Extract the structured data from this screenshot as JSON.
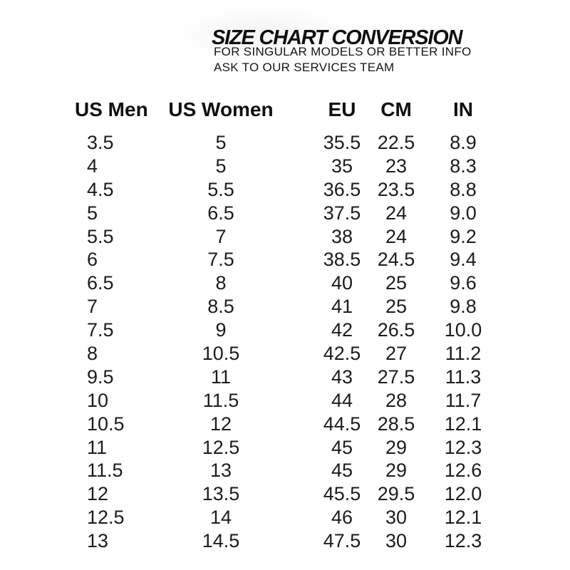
{
  "header": {
    "title": "SIZE CHART CONVERSION",
    "subtitle_line1": "FOR SINGULAR MODELS OR BETTER INFO",
    "subtitle_line2": "ASK TO OUR SERVICES TEAM"
  },
  "colors": {
    "background": "#ffffff",
    "text": "#1a1a1a",
    "title_text": "#0f0f0f"
  },
  "chart_data": {
    "type": "table",
    "title": "SIZE CHART CONVERSION",
    "columns": [
      "US Men",
      "US Women",
      "EU",
      "CM",
      "IN"
    ],
    "rows": [
      [
        "3.5",
        "5",
        "35.5",
        "22.5",
        "8.9"
      ],
      [
        "4",
        "5",
        "35",
        "23",
        "8.3"
      ],
      [
        "4.5",
        "5.5",
        "36.5",
        "23.5",
        "8.8"
      ],
      [
        "5",
        "6.5",
        "37.5",
        "24",
        "9.0"
      ],
      [
        "5.5",
        "7",
        "38",
        "24",
        "9.2"
      ],
      [
        "6",
        "7.5",
        "38.5",
        "24.5",
        "9.4"
      ],
      [
        "6.5",
        "8",
        "40",
        "25",
        "9.6"
      ],
      [
        "7",
        "8.5",
        "41",
        "25",
        "9.8"
      ],
      [
        "7.5",
        "9",
        "42",
        "26.5",
        "10.0"
      ],
      [
        "8",
        "10.5",
        "42.5",
        "27",
        "11.2"
      ],
      [
        "9.5",
        "11",
        "43",
        "27.5",
        "11.3"
      ],
      [
        "10",
        "11.5",
        "44",
        "28",
        "11.7"
      ],
      [
        "10.5",
        "12",
        "44.5",
        "28.5",
        "12.1"
      ],
      [
        "11",
        "12.5",
        "45",
        "29",
        "12.3"
      ],
      [
        "11.5",
        "13",
        "45",
        "29",
        "12.6"
      ],
      [
        "12",
        "13.5",
        "45.5",
        "29.5",
        "12.0"
      ],
      [
        "12.5",
        "14",
        "46",
        "30",
        "12.1"
      ],
      [
        "13",
        "14.5",
        "47.5",
        "30",
        "12.3"
      ]
    ]
  }
}
